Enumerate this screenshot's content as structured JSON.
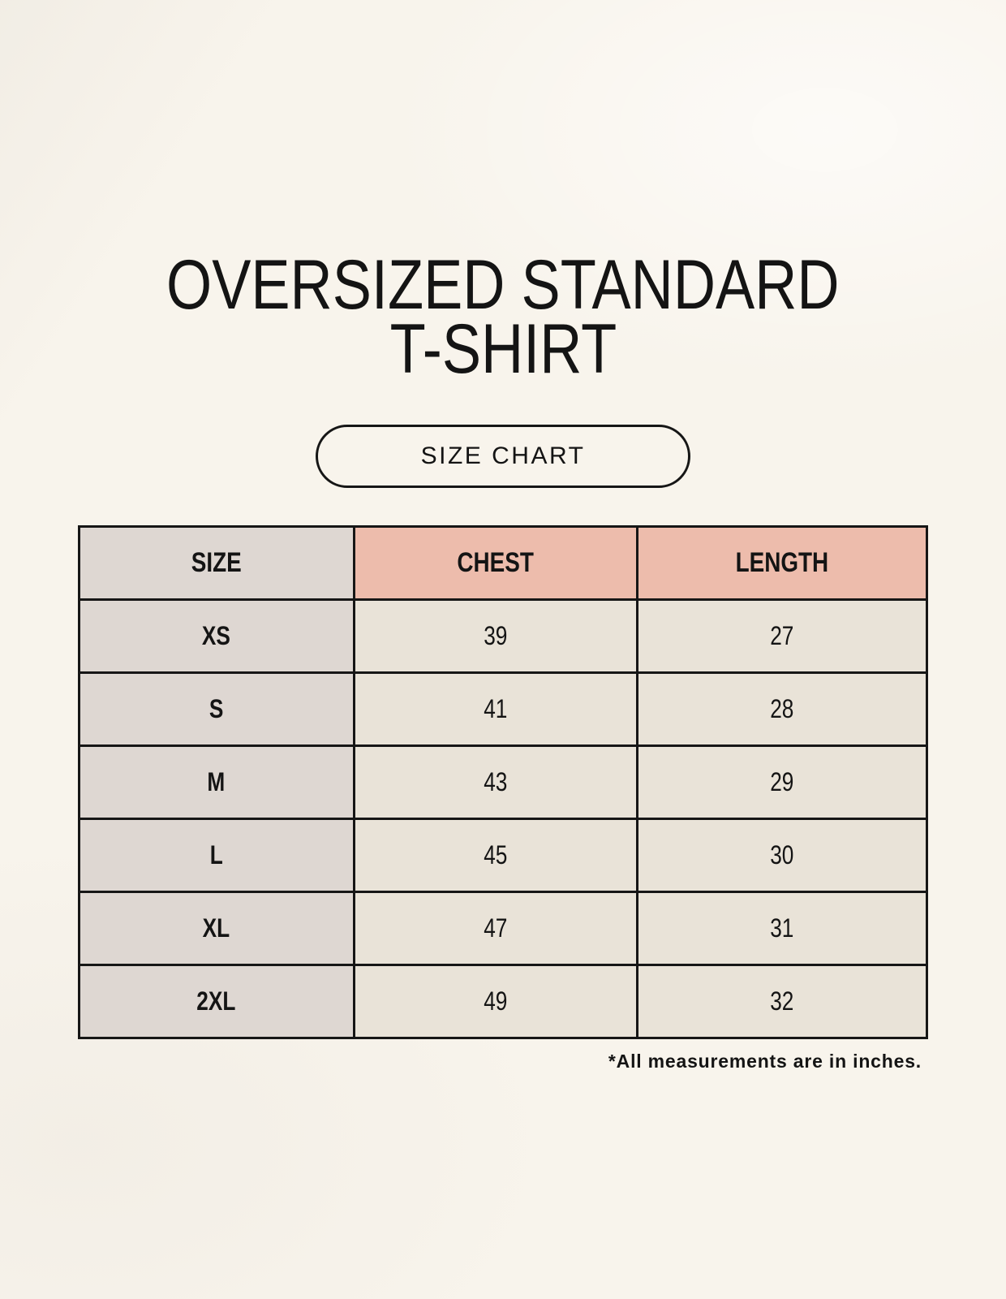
{
  "page": {
    "title_line1": "OVERSIZED STANDARD",
    "title_line2": "T-SHIRT",
    "badge_label": "SIZE CHART",
    "footnote": "*All measurements are in inches."
  },
  "colors": {
    "background": "#f8f4ec",
    "text": "#141414",
    "table_border": "#161616",
    "size_column_bg": "#ded7d2",
    "header_accent_bg": "#edbcac",
    "cell_bg": "#e9e3d8"
  },
  "chart_data": {
    "type": "table",
    "title": "OVERSIZED STANDARD T-SHIRT",
    "subtitle": "SIZE CHART",
    "columns": [
      "SIZE",
      "CHEST",
      "LENGTH"
    ],
    "rows": [
      [
        "XS",
        "39",
        "27"
      ],
      [
        "S",
        "41",
        "28"
      ],
      [
        "M",
        "43",
        "29"
      ],
      [
        "L",
        "45",
        "30"
      ],
      [
        "XL",
        "47",
        "31"
      ],
      [
        "2XL",
        "49",
        "32"
      ]
    ],
    "units_note": "*All measurements are in inches.",
    "layout": "3-column size chart; first column taupe, measurement headers salmon, body cells cream, black grid borders"
  }
}
